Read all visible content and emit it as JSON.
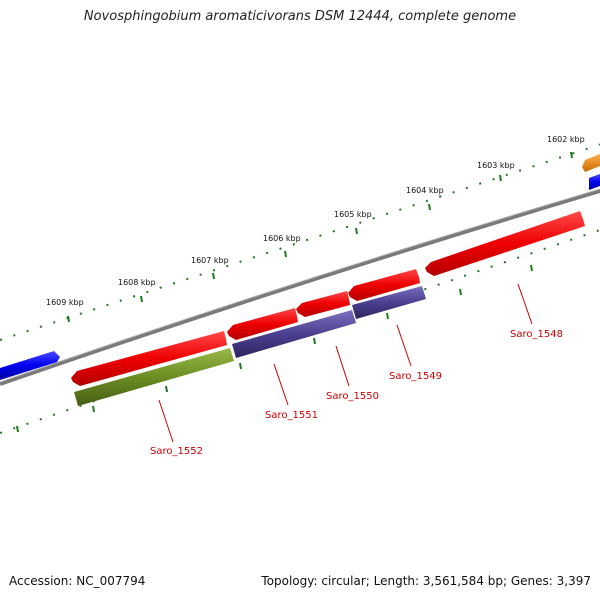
{
  "title": "Novosphingobium aromaticivorans DSM 12444, complete genome",
  "accession_text": "Accession: NC_007794",
  "summary_text": "Topology: circular; Length: 3,561,584 bp; Genes: 3,397",
  "scale": {
    "unit": "kbp",
    "labels": [
      "1602 kbp",
      "1603 kbp",
      "1604 kbp",
      "1605 kbp",
      "1606 kbp",
      "1607 kbp",
      "1608 kbp",
      "1609 kbp"
    ]
  },
  "colors": {
    "backbone": "#808080",
    "scale_ticks": "#1f7a1f",
    "forward_cds": "#ff0000",
    "reverse_cds": "#ff0000",
    "blue_feature": "#0000ff",
    "orange_feature": "#ff8c00",
    "purple_feature": "#4b3f8f",
    "olive_feature": "#6b8e23",
    "label_text": "#cc0000"
  },
  "genes": [
    {
      "locus": "Saro_1548",
      "strand": "reverse"
    },
    {
      "locus": "Saro_1549",
      "strand": "reverse"
    },
    {
      "locus": "Saro_1550",
      "strand": "reverse"
    },
    {
      "locus": "Saro_1551",
      "strand": "reverse"
    },
    {
      "locus": "Saro_1552",
      "strand": "reverse"
    }
  ]
}
